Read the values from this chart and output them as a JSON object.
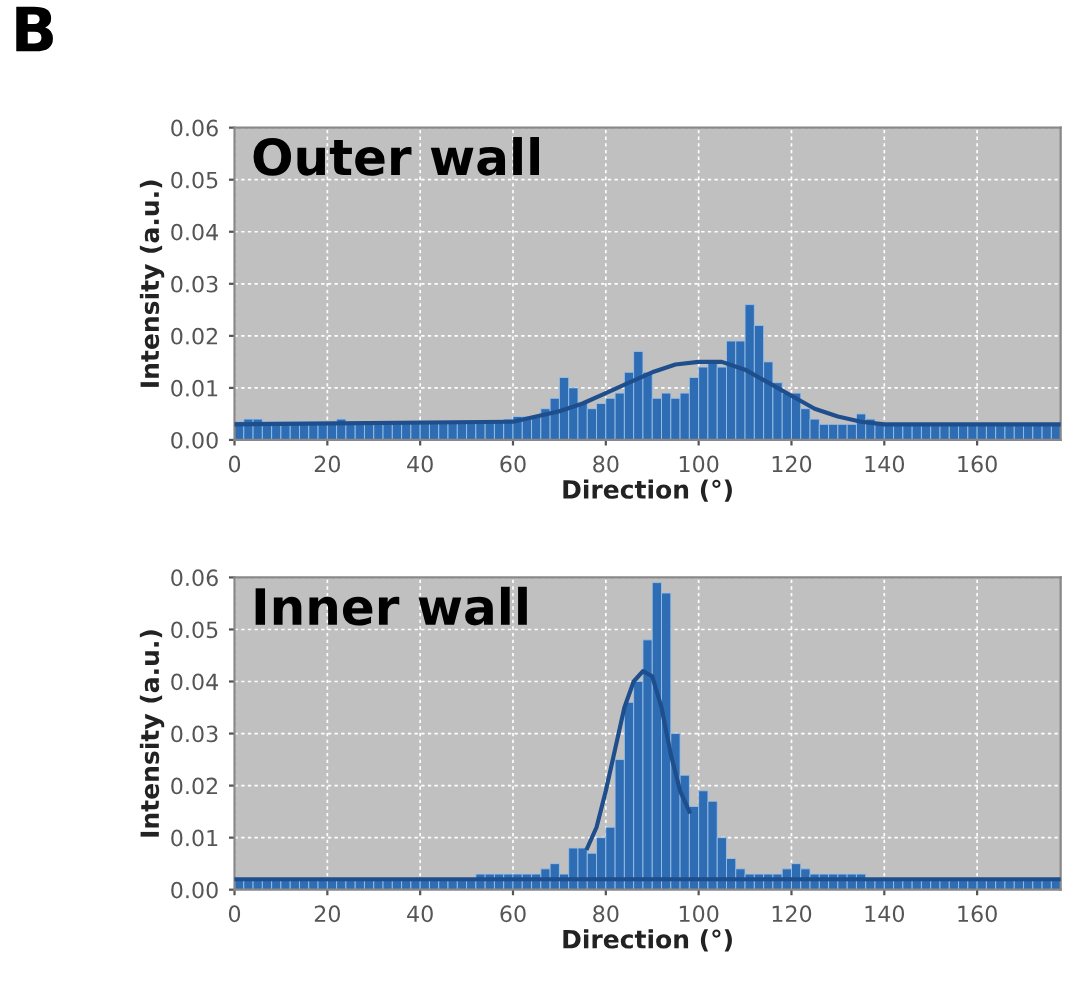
{
  "chart_data": [
    {
      "type": "histogram",
      "title": "Outer wall",
      "xlabel": "Direction (°)",
      "ylabel": "Intensity (a.u.)",
      "annotations": [
        "B"
      ],
      "bins": [
        0,
        2,
        4,
        6,
        8,
        10,
        12,
        14,
        16,
        18,
        20,
        22,
        24,
        26,
        28,
        30,
        32,
        34,
        36,
        38,
        40,
        42,
        44,
        46,
        48,
        50,
        52,
        54,
        56,
        58,
        60,
        62,
        64,
        66,
        68,
        70,
        72,
        74,
        76,
        78,
        80,
        82,
        84,
        86,
        88,
        90,
        92,
        94,
        96,
        98,
        100,
        102,
        104,
        106,
        108,
        110,
        112,
        114,
        116,
        118,
        120,
        122,
        124,
        126,
        128,
        130,
        132,
        134,
        136,
        138,
        140,
        142,
        144,
        146,
        148,
        150,
        152,
        154,
        156,
        158,
        160,
        162,
        164,
        166,
        168,
        170,
        172,
        174,
        176,
        178
      ],
      "values": [
        0.0035,
        0.004,
        0.004,
        0.0035,
        0.0035,
        0.0035,
        0.0035,
        0.0035,
        0.0035,
        0.0035,
        0.0035,
        0.004,
        0.0035,
        0.0035,
        0.0035,
        0.0035,
        0.0035,
        0.0035,
        0.0035,
        0.0035,
        0.0035,
        0.0035,
        0.0035,
        0.0035,
        0.0035,
        0.0035,
        0.0035,
        0.0035,
        0.0035,
        0.004,
        0.0045,
        0.0045,
        0.0045,
        0.006,
        0.008,
        0.012,
        0.01,
        0.007,
        0.006,
        0.007,
        0.008,
        0.009,
        0.013,
        0.017,
        0.013,
        0.008,
        0.009,
        0.008,
        0.009,
        0.012,
        0.014,
        0.015,
        0.014,
        0.019,
        0.019,
        0.026,
        0.022,
        0.015,
        0.011,
        0.009,
        0.009,
        0.006,
        0.004,
        0.003,
        0.003,
        0.003,
        0.003,
        0.005,
        0.004,
        0.003,
        0.003,
        0.003,
        0.003,
        0.003,
        0.003,
        0.003,
        0.003,
        0.003,
        0.003,
        0.003,
        0.003,
        0.003,
        0.003,
        0.003,
        0.003,
        0.003,
        0.003,
        0.003,
        0.003
      ],
      "color": "#2e6db4",
      "series": [
        {
          "type": "line",
          "color": "#1f4e8c",
          "x": [
            0,
            60,
            70,
            75,
            80,
            85,
            90,
            95,
            100,
            105,
            110,
            115,
            120,
            125,
            130,
            135,
            140,
            178
          ],
          "values": [
            0.003,
            0.0035,
            0.0055,
            0.007,
            0.009,
            0.011,
            0.013,
            0.0145,
            0.015,
            0.015,
            0.0135,
            0.011,
            0.0085,
            0.006,
            0.0045,
            0.0035,
            0.003,
            0.003
          ]
        }
      ],
      "xlim": [
        0,
        178
      ],
      "xticks": [
        0,
        20,
        40,
        60,
        80,
        100,
        120,
        140,
        160
      ],
      "ylim": [
        0,
        0.06
      ],
      "yticks": [
        {
          "value": 0,
          "label": "0.00"
        },
        {
          "value": 0.01,
          "label": "0.01"
        },
        {
          "value": 0.02,
          "label": "0.02"
        },
        {
          "value": 0.03,
          "label": "0.03"
        },
        {
          "value": 0.04,
          "label": "0.04"
        },
        {
          "value": 0.05,
          "label": "0.05"
        },
        {
          "value": 0.06,
          "label": "0.06"
        }
      ],
      "grid": true
    },
    {
      "type": "histogram",
      "title": "Inner wall",
      "xlabel": "Direction (°)",
      "ylabel": "Intensity (a.u.)",
      "bins": [
        0,
        2,
        4,
        6,
        8,
        10,
        12,
        14,
        16,
        18,
        20,
        22,
        24,
        26,
        28,
        30,
        32,
        34,
        36,
        38,
        40,
        42,
        44,
        46,
        48,
        50,
        52,
        54,
        56,
        58,
        60,
        62,
        64,
        66,
        68,
        70,
        72,
        74,
        76,
        78,
        80,
        82,
        84,
        86,
        88,
        90,
        92,
        94,
        96,
        98,
        100,
        102,
        104,
        106,
        108,
        110,
        112,
        114,
        116,
        118,
        120,
        122,
        124,
        126,
        128,
        130,
        132,
        134,
        136,
        138,
        140,
        142,
        144,
        146,
        148,
        150,
        152,
        154,
        156,
        158,
        160,
        162,
        164,
        166,
        168,
        170,
        172,
        174,
        176,
        178
      ],
      "values": [
        0.002,
        0.002,
        0.002,
        0.002,
        0.002,
        0.002,
        0.002,
        0.002,
        0.002,
        0.002,
        0.002,
        0.002,
        0.002,
        0.002,
        0.002,
        0.002,
        0.002,
        0.002,
        0.002,
        0.002,
        0.002,
        0.002,
        0.002,
        0.002,
        0.002,
        0.002,
        0.003,
        0.003,
        0.003,
        0.003,
        0.003,
        0.003,
        0.003,
        0.004,
        0.005,
        0.003,
        0.008,
        0.008,
        0.007,
        0.01,
        0.012,
        0.025,
        0.036,
        0.04,
        0.048,
        0.059,
        0.057,
        0.03,
        0.022,
        0.016,
        0.019,
        0.017,
        0.01,
        0.006,
        0.004,
        0.003,
        0.003,
        0.003,
        0.003,
        0.004,
        0.005,
        0.004,
        0.003,
        0.003,
        0.003,
        0.003,
        0.003,
        0.003,
        0.002,
        0.002,
        0.002,
        0.002,
        0.002,
        0.002,
        0.002,
        0.002,
        0.002,
        0.002,
        0.002,
        0.002,
        0.002,
        0.002,
        0.002,
        0.002,
        0.002,
        0.002,
        0.002,
        0.002,
        0.002
      ],
      "color": "#2e6db4",
      "series": [
        {
          "type": "line",
          "color": "#1f4e8c",
          "x": [
            76,
            78,
            80,
            82,
            84,
            86,
            88,
            90,
            92,
            94,
            96,
            98
          ],
          "values": [
            0.008,
            0.012,
            0.019,
            0.027,
            0.035,
            0.04,
            0.042,
            0.041,
            0.035,
            0.026,
            0.019,
            0.015
          ]
        }
      ],
      "ref_lines": [
        {
          "axis": "y",
          "value": 0.002,
          "color": "#1f4e8c"
        }
      ],
      "xlim": [
        0,
        178
      ],
      "xticks": [
        0,
        20,
        40,
        60,
        80,
        100,
        120,
        140,
        160
      ],
      "ylim": [
        0,
        0.06
      ],
      "yticks": [
        {
          "value": 0,
          "label": "0.00"
        },
        {
          "value": 0.01,
          "label": "0.01"
        },
        {
          "value": 0.02,
          "label": "0.02"
        },
        {
          "value": 0.03,
          "label": "0.03"
        },
        {
          "value": 0.04,
          "label": "0.04"
        },
        {
          "value": 0.05,
          "label": "0.05"
        },
        {
          "value": 0.06,
          "label": "0.06"
        }
      ],
      "grid": true
    }
  ]
}
